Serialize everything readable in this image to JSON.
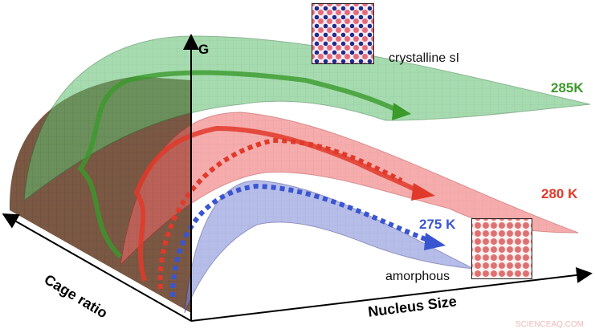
{
  "axes": {
    "y_label": "G",
    "x_label": "Nucleus Size",
    "z_label": "Cage ratio"
  },
  "curves": [
    {
      "label": "285K",
      "color": "#3a9a2a"
    },
    {
      "label": "280 K",
      "color": "#e03a2a"
    },
    {
      "label": "275 K",
      "color": "#3a55d0"
    }
  ],
  "insets": {
    "top_label": "crystalline sI",
    "bottom_label": "amorphous"
  },
  "watermark": "SCIENCEAQ.COM",
  "colors": {
    "brown": "#6b4630",
    "green": "#3a9a2a",
    "red": "#e03a2a",
    "blue": "#3a55d0"
  }
}
